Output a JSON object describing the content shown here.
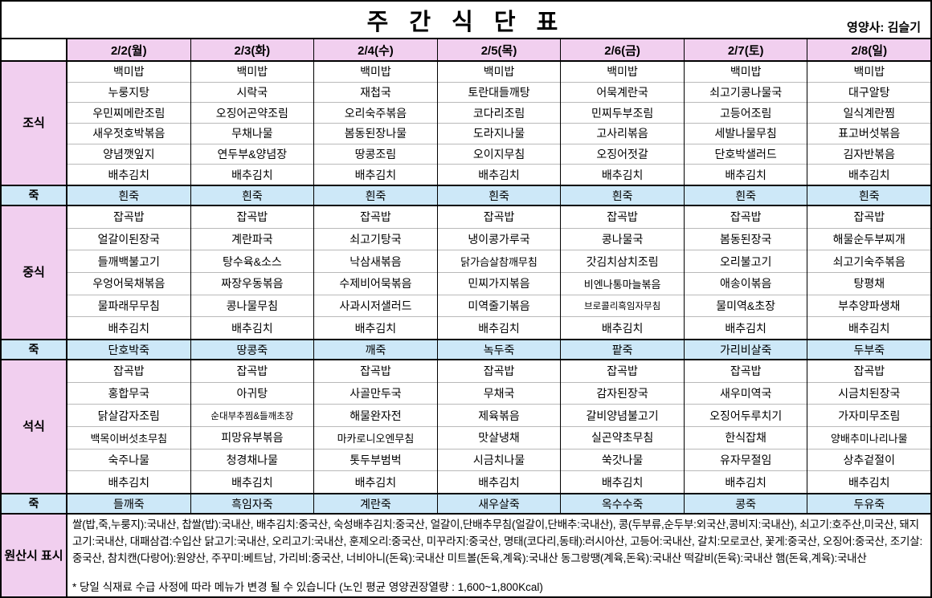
{
  "title": "주 간 식 단 표",
  "nutritionist": "영양사: 김슬기",
  "colors": {
    "header_pink": "#F1CFEF",
    "porridge_blue": "#CDE8F8",
    "grid_black": "#000000"
  },
  "menu": {
    "day_headers": [
      "2/2(월)",
      "2/3(화)",
      "2/4(수)",
      "2/5(목)",
      "2/6(금)",
      "2/7(토)",
      "2/8(일)"
    ],
    "blocks": [
      {
        "label": "조식",
        "kind": "meal",
        "days": [
          [
            "백미밥",
            "누룽지탕",
            "우민찌메란조림",
            "새우젓호박볶음",
            "양념깻잎지",
            "배추김치"
          ],
          [
            "백미밥",
            "시락국",
            "오징어곤약조림",
            "무채나물",
            "연두부&양념장",
            "배추김치"
          ],
          [
            "백미밥",
            "재첩국",
            "오리숙주볶음",
            "봄동된장나물",
            "땅콩조림",
            "배추김치"
          ],
          [
            "백미밥",
            "토란대들깨탕",
            "코다리조림",
            "도라지나물",
            "오이지무침",
            "배추김치"
          ],
          [
            "백미밥",
            "어묵계란국",
            "민찌두부조림",
            "고사리볶음",
            "오징어젓갈",
            "배추김치"
          ],
          [
            "백미밥",
            "쇠고기콩나물국",
            "고등어조림",
            "세발나물무침",
            "단호박샐러드",
            "배추김치"
          ],
          [
            "백미밥",
            "대구알탕",
            "일식계란찜",
            "표고버섯볶음",
            "김자반볶음",
            "배추김치"
          ]
        ]
      },
      {
        "label": "죽",
        "kind": "juk",
        "days": [
          "흰죽",
          "흰죽",
          "흰죽",
          "흰죽",
          "흰죽",
          "흰죽",
          "흰죽"
        ]
      },
      {
        "label": "중식",
        "kind": "meal",
        "days": [
          [
            "잡곡밥",
            "얼갈이된장국",
            "들깨백불고기",
            "우엉어묵채볶음",
            "물파래무무침",
            "배추김치"
          ],
          [
            "잡곡밥",
            "계란파국",
            "탕수육&소스",
            "짜장우동볶음",
            "콩나물무침",
            "배추김치"
          ],
          [
            "잡곡밥",
            "쇠고기탕국",
            "낙삼새볶음",
            "수제비어묵볶음",
            "사과시저샐러드",
            "배추김치"
          ],
          [
            "잡곡밥",
            "냉이콩가루국",
            "닭가슴살참깨무침",
            "민찌가지볶음",
            "미역줄기볶음",
            "배추김치"
          ],
          [
            "잡곡밥",
            "콩나물국",
            "갓김치삼치조림",
            "비엔나통마늘볶음",
            "브로콜리흑임자무침",
            "배추김치"
          ],
          [
            "잡곡밥",
            "봄동된장국",
            "오리불고기",
            "애송이볶음",
            "물미역&초장",
            "배추김치"
          ],
          [
            "잡곡밥",
            "해물순두부찌개",
            "쇠고기숙주볶음",
            "탕평채",
            "부추양파생채",
            "배추김치"
          ]
        ]
      },
      {
        "label": "죽",
        "kind": "juk",
        "days": [
          "단호박죽",
          "땅콩죽",
          "깨죽",
          "녹두죽",
          "팥죽",
          "가리비살죽",
          "두부죽"
        ]
      },
      {
        "label": "석식",
        "kind": "meal",
        "days": [
          [
            "잡곡밥",
            "홍합무국",
            "닭살감자조림",
            "백목이버섯초무침",
            "숙주나물",
            "배추김치"
          ],
          [
            "잡곡밥",
            "아귀탕",
            "순대부추찜&들깨초장",
            "피망유부볶음",
            "청경채나물",
            "배추김치"
          ],
          [
            "잡곡밥",
            "사골만두국",
            "해물완자전",
            "마카로니오엔무침",
            "톳두부범벅",
            "배추김치"
          ],
          [
            "잡곡밥",
            "무채국",
            "제육볶음",
            "맛살냉채",
            "시금치나물",
            "배추김치"
          ],
          [
            "잡곡밥",
            "감자된장국",
            "갈비양념불고기",
            "실곤약초무침",
            "쑥갓나물",
            "배추김치"
          ],
          [
            "잡곡밥",
            "새우미역국",
            "오징어두루치기",
            "한식잡채",
            "유자무절임",
            "배추김치"
          ],
          [
            "잡곡밥",
            "시금치된장국",
            "가자미무조림",
            "양배추미나리나물",
            "상추겉절이",
            "배추김치"
          ]
        ]
      },
      {
        "label": "죽",
        "kind": "juk",
        "days": [
          "들깨죽",
          "흑임자죽",
          "계란죽",
          "새우살죽",
          "옥수수죽",
          "콩죽",
          "두유죽"
        ]
      }
    ]
  },
  "origin": {
    "label": "원산시 표시",
    "text": "쌀(밥,죽,누룽지):국내산, 찹쌀(밥):국내산, 배추김치:중국산, 숙성배추김치:중국산, 얼갈이,단배추무침(얼갈이,단배추:국내산), 콩(두부류,순두부:외국산,콩비지:국내산), 쇠고기:호주산,미국산, 돼지고기:국내산, 대패삼겹:수입산 닭고기:국내산, 오리고기:국내산, 훈제오리:중국산, 미꾸라지:중국산, 명태(코다리,동태):러시아산, 고등어:국내산, 갈치:모로코산, 꽃게:중국산, 오징어:중국산, 조기살:중국산, 참치캔(다랑어):원양산, 주꾸미:베트남, 가리비:중국산, 너비아니(돈육):국내산 미트볼(돈육,계육):국내산 동그랑땡(계육,돈육):국내산 떡갈비(돈육):국내산 햄(돈육,계육):국내산",
    "note": "* 당일 식재료 수급 사정에 따라 메뉴가 변경 될 수 있습니다 (노인 평균 영양권장열량 : 1,600~1,800Kcal)"
  }
}
